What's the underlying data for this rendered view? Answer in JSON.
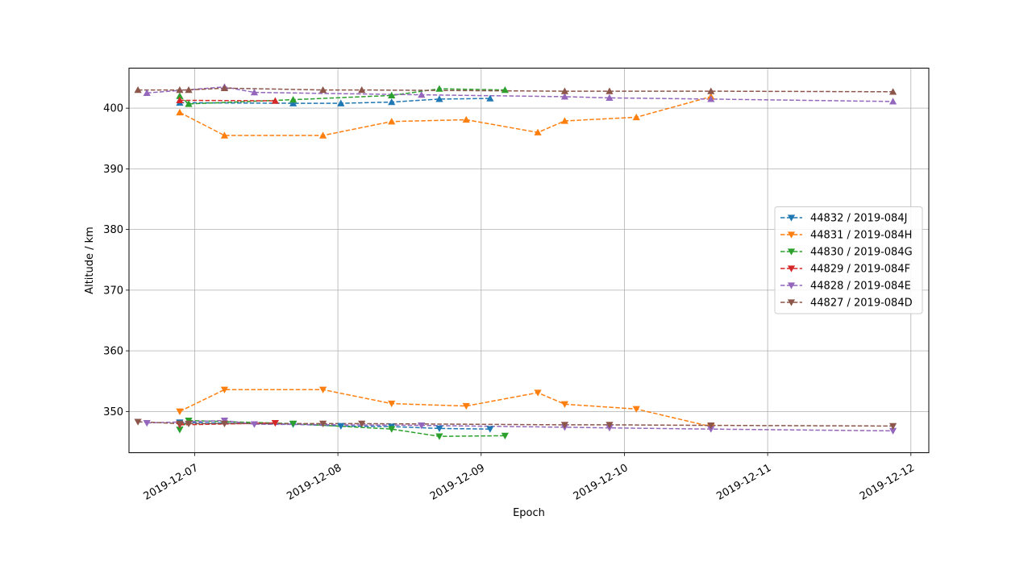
{
  "chart_data": {
    "type": "line",
    "xlabel": "Epoch",
    "ylabel": "Altitude / km",
    "x_tick_labels": [
      "2019-12-07",
      "2019-12-08",
      "2019-12-09",
      "2019-12-10",
      "2019-12-11",
      "2019-12-12"
    ],
    "y_tick_labels": [
      "350",
      "360",
      "370",
      "380",
      "390",
      "400"
    ],
    "xlim": [
      "2019-12-06 13:00",
      "2019-12-12 03:00"
    ],
    "ylim": [
      343.2,
      406.6
    ],
    "grid": true,
    "legend_position": "center-right",
    "line_style": "dashed",
    "markers": {
      "apogee": "triangle-up",
      "perigee": "triangle-down"
    },
    "series": [
      {
        "name": "44832 / 2019-084J",
        "color": "#1f77b4",
        "apogee": [
          [
            "2019-12-06 21:30",
            400.9
          ],
          [
            "2019-12-07 16:30",
            400.8
          ],
          [
            "2019-12-08 00:30",
            400.8
          ],
          [
            "2019-12-08 09:00",
            401.0
          ],
          [
            "2019-12-08 17:00",
            401.5
          ],
          [
            "2019-12-09 01:30",
            401.6
          ]
        ],
        "perigee": [
          [
            "2019-12-06 21:30",
            348.2
          ],
          [
            "2019-12-07 16:30",
            347.9
          ],
          [
            "2019-12-08 00:30",
            347.6
          ],
          [
            "2019-12-08 09:00",
            347.5
          ],
          [
            "2019-12-08 17:00",
            347.2
          ],
          [
            "2019-12-09 01:30",
            347.1
          ]
        ]
      },
      {
        "name": "44831 / 2019-084H",
        "color": "#ff7f0e",
        "apogee": [
          [
            "2019-12-06 21:30",
            399.3
          ],
          [
            "2019-12-07 05:00",
            395.5
          ],
          [
            "2019-12-07 21:30",
            395.5
          ],
          [
            "2019-12-08 09:00",
            397.8
          ],
          [
            "2019-12-08 21:30",
            398.1
          ],
          [
            "2019-12-09 09:30",
            396.0
          ],
          [
            "2019-12-09 14:00",
            397.9
          ],
          [
            "2019-12-10 02:00",
            398.5
          ],
          [
            "2019-12-10 14:30",
            401.9
          ]
        ],
        "perigee": [
          [
            "2019-12-06 21:30",
            350.0
          ],
          [
            "2019-12-07 05:00",
            353.6
          ],
          [
            "2019-12-07 21:30",
            353.6
          ],
          [
            "2019-12-08 09:00",
            351.3
          ],
          [
            "2019-12-08 21:30",
            350.9
          ],
          [
            "2019-12-09 09:30",
            353.1
          ],
          [
            "2019-12-09 14:00",
            351.2
          ],
          [
            "2019-12-10 02:00",
            350.4
          ],
          [
            "2019-12-10 14:30",
            347.5
          ]
        ]
      },
      {
        "name": "44830 / 2019-084G",
        "color": "#2ca02c",
        "apogee": [
          [
            "2019-12-06 21:30",
            402.0
          ],
          [
            "2019-12-06 23:00",
            400.7
          ],
          [
            "2019-12-07 16:30",
            401.4
          ],
          [
            "2019-12-08 09:00",
            402.1
          ],
          [
            "2019-12-08 17:00",
            403.2
          ],
          [
            "2019-12-09 04:00",
            403.0
          ]
        ],
        "perigee": [
          [
            "2019-12-06 21:30",
            347.0
          ],
          [
            "2019-12-06 23:00",
            348.5
          ],
          [
            "2019-12-07 16:30",
            348.0
          ],
          [
            "2019-12-08 09:00",
            347.1
          ],
          [
            "2019-12-08 17:00",
            345.9
          ],
          [
            "2019-12-09 04:00",
            346.0
          ]
        ]
      },
      {
        "name": "44829 / 2019-084F",
        "color": "#d62728",
        "apogee": [
          [
            "2019-12-06 21:30",
            401.3
          ],
          [
            "2019-12-07 13:30",
            401.2
          ]
        ],
        "perigee": [
          [
            "2019-12-06 21:30",
            347.8
          ],
          [
            "2019-12-07 13:30",
            348.1
          ]
        ]
      },
      {
        "name": "44828 / 2019-084E",
        "color": "#9467bd",
        "apogee": [
          [
            "2019-12-06 16:00",
            402.5
          ],
          [
            "2019-12-07 05:00",
            403.5
          ],
          [
            "2019-12-07 10:00",
            402.6
          ],
          [
            "2019-12-08 14:00",
            402.2
          ],
          [
            "2019-12-09 14:00",
            401.9
          ],
          [
            "2019-12-09 21:30",
            401.7
          ],
          [
            "2019-12-10 14:30",
            401.5
          ],
          [
            "2019-12-11 21:00",
            401.1
          ]
        ],
        "perigee": [
          [
            "2019-12-06 16:00",
            348.1
          ],
          [
            "2019-12-07 05:00",
            348.5
          ],
          [
            "2019-12-07 10:00",
            347.9
          ],
          [
            "2019-12-08 14:00",
            347.7
          ],
          [
            "2019-12-09 14:00",
            347.4
          ],
          [
            "2019-12-09 21:30",
            347.3
          ],
          [
            "2019-12-10 14:30",
            347.1
          ],
          [
            "2019-12-11 21:00",
            346.8
          ]
        ]
      },
      {
        "name": "44827 / 2019-084D",
        "color": "#8c564b",
        "apogee": [
          [
            "2019-12-06 14:30",
            403.0
          ],
          [
            "2019-12-06 21:30",
            403.0
          ],
          [
            "2019-12-06 23:00",
            403.0
          ],
          [
            "2019-12-07 05:00",
            403.3
          ],
          [
            "2019-12-07 21:30",
            403.0
          ],
          [
            "2019-12-08 04:00",
            403.0
          ],
          [
            "2019-12-09 14:00",
            402.8
          ],
          [
            "2019-12-09 21:30",
            402.8
          ],
          [
            "2019-12-10 14:30",
            402.8
          ],
          [
            "2019-12-11 21:00",
            402.7
          ]
        ],
        "perigee": [
          [
            "2019-12-06 14:30",
            348.3
          ],
          [
            "2019-12-06 21:30",
            348.0
          ],
          [
            "2019-12-06 23:00",
            348.0
          ],
          [
            "2019-12-07 05:00",
            348.0
          ],
          [
            "2019-12-07 21:30",
            348.0
          ],
          [
            "2019-12-08 04:00",
            348.0
          ],
          [
            "2019-12-09 14:00",
            347.8
          ],
          [
            "2019-12-09 21:30",
            347.8
          ],
          [
            "2019-12-10 14:30",
            347.7
          ],
          [
            "2019-12-11 21:00",
            347.6
          ]
        ]
      }
    ]
  }
}
